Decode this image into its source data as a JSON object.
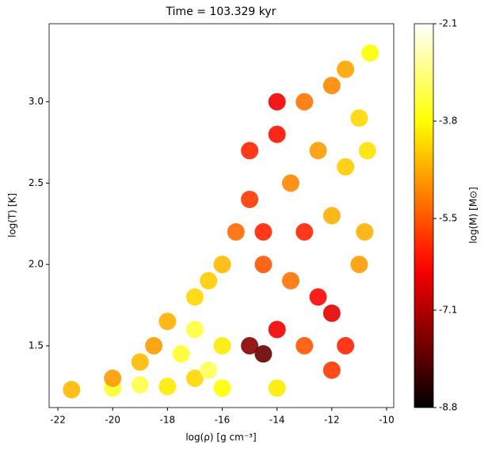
{
  "chart_data": {
    "type": "scatter",
    "title": "Time = 103.329 kyr",
    "x_label": "log(ρ) [g cm⁻³]",
    "y_label": "log(T) [K]",
    "cmap": "hot",
    "xlim": [
      -22.32,
      -9.74
    ],
    "ylim": [
      1.12,
      3.48
    ],
    "xticks": [
      -22,
      -20,
      -18,
      -16,
      -14,
      -12,
      -10
    ],
    "yticks": [
      1.5,
      {
        "value": 2,
        "label": "2.0"
      },
      2.5,
      {
        "value": 3,
        "label": "3.0"
      }
    ],
    "x": [
      -21.5,
      -20,
      -19,
      -18,
      -17,
      -16,
      -14,
      -20,
      -19,
      -18.5,
      -18,
      -17.5,
      -17,
      -17,
      -16.5,
      -16,
      -16,
      -15.5,
      -15,
      -15,
      -14.5,
      -14,
      -14.5,
      -14,
      -13.5,
      -13,
      -13,
      -13,
      -12.5,
      -12.5,
      -12,
      -12,
      -12,
      -11.5,
      -11.5,
      -11,
      -11,
      -10.8,
      -10.6,
      -10.7,
      -14,
      -15,
      -14.5,
      -16.5,
      -13.5,
      -12,
      -11.5
    ],
    "y": [
      1.23,
      1.24,
      1.26,
      1.25,
      1.3,
      1.24,
      1.24,
      1.3,
      1.4,
      1.5,
      1.65,
      1.45,
      1.8,
      1.6,
      1.9,
      2.0,
      1.5,
      2.2,
      1.5,
      2.4,
      1.45,
      2.8,
      2.0,
      1.6,
      2.5,
      3.0,
      2.2,
      1.5,
      1.8,
      2.7,
      3.1,
      2.3,
      1.35,
      3.2,
      2.6,
      2.9,
      2.0,
      2.2,
      3.3,
      2.7,
      3.0,
      2.7,
      2.2,
      1.35,
      1.9,
      1.7,
      1.5
    ],
    "c": [
      -4.5,
      -3.5,
      -3.3,
      -4,
      -4.2,
      -3.8,
      -4,
      -4.8,
      -4.5,
      -4.8,
      -4.6,
      -3.5,
      -4.2,
      -3.4,
      -4.3,
      -4.5,
      -4,
      -5.3,
      -7.5,
      -5.8,
      -7.8,
      -6.2,
      -5.5,
      -6.5,
      -5,
      -5.2,
      -6,
      -5.5,
      -6.3,
      -4.8,
      -5,
      -4.6,
      -5.8,
      -4.7,
      -4.3,
      -4.2,
      -4.8,
      -4.6,
      -3.8,
      -4.1,
      -6.5,
      -6,
      -6,
      -3.2,
      -5.2,
      -6.6,
      -6
    ],
    "colorbar": {
      "label": "log(M) [M⊙]",
      "lim": [
        -8.8,
        -2.1
      ],
      "ticks": [
        -8.8,
        -7.1,
        -5.5,
        -3.8,
        -2.1
      ]
    }
  }
}
